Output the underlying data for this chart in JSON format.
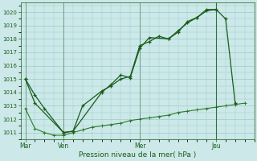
{
  "xlabel": "Pression niveau de la mer( hPa )",
  "bg_color": "#cce8e8",
  "grid_color": "#99cccc",
  "line_color1": "#1a5c1a",
  "line_color2": "#2d7a2d",
  "ylim": [
    1010.5,
    1020.7
  ],
  "yticks": [
    1011,
    1012,
    1013,
    1014,
    1015,
    1016,
    1017,
    1018,
    1019,
    1020
  ],
  "day_labels": [
    "Mar",
    "Ven",
    "Mer",
    "Jeu"
  ],
  "day_positions": [
    0,
    24,
    72,
    120
  ],
  "total_steps": 144,
  "series1_x": [
    0,
    6,
    12,
    24,
    30,
    36,
    48,
    54,
    60,
    66,
    72,
    78,
    84,
    90,
    96,
    102,
    108,
    114,
    120,
    126,
    132
  ],
  "series1_y": [
    1015.0,
    1013.8,
    1012.8,
    1011.0,
    1011.1,
    1013.0,
    1014.1,
    1014.5,
    1015.0,
    1015.2,
    1017.5,
    1017.8,
    1018.2,
    1018.0,
    1018.5,
    1019.3,
    1019.6,
    1020.1,
    1020.2,
    1019.5,
    1013.2
  ],
  "series2_x": [
    0,
    6,
    24,
    30,
    48,
    54,
    60,
    66,
    72,
    78,
    90,
    96,
    102,
    108,
    114,
    120
  ],
  "series2_y": [
    1015.0,
    1013.2,
    1011.0,
    1011.1,
    1014.0,
    1014.6,
    1015.3,
    1015.1,
    1017.3,
    1018.1,
    1018.0,
    1018.6,
    1019.2,
    1019.6,
    1020.2,
    1020.2
  ],
  "series3_x": [
    0,
    6,
    12,
    18,
    24,
    30,
    36,
    42,
    48,
    54,
    60,
    66,
    72,
    78,
    84,
    90,
    96,
    102,
    108,
    114,
    120,
    126,
    132,
    138
  ],
  "series3_y": [
    1012.8,
    1011.3,
    1011.0,
    1010.8,
    1010.8,
    1011.0,
    1011.2,
    1011.4,
    1011.5,
    1011.6,
    1011.7,
    1011.9,
    1012.0,
    1012.1,
    1012.2,
    1012.3,
    1012.5,
    1012.6,
    1012.7,
    1012.8,
    1012.9,
    1013.0,
    1013.1,
    1013.2
  ]
}
